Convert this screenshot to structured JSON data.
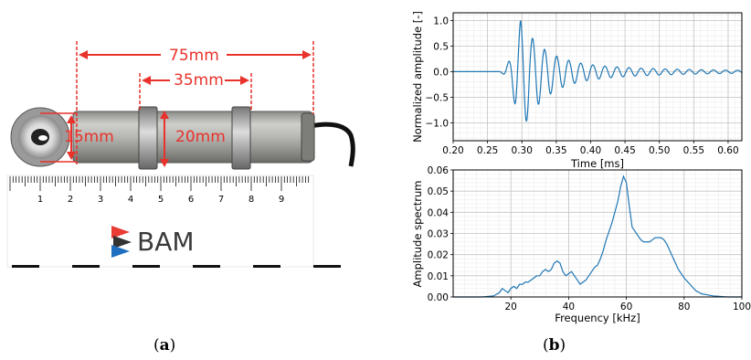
{
  "photo": {
    "dim_total": "75mm",
    "dim_middle": "35mm",
    "dim_diameter_outer": "15mm",
    "dim_diameter_inner": "20mm",
    "ruler_numbers": [
      "1",
      "2",
      "3",
      "4",
      "5",
      "6",
      "7",
      "8",
      "9"
    ],
    "logo_text": "BAM",
    "accent_red": "#e8322b",
    "logo_blue": "#1e6fc0",
    "logo_red": "#e83c34"
  },
  "captions": {
    "a_open": "(",
    "a_letter": "a",
    "a_close": ")",
    "b_open": "(",
    "b_letter": "b",
    "b_close": ")"
  },
  "chart_data": [
    {
      "type": "line",
      "xlabel": "Time [ms]",
      "ylabel": "Normalized amplitude [-]",
      "xlim": [
        0.2,
        0.62
      ],
      "ylim": [
        -1.35,
        1.15
      ],
      "xticks": [
        0.2,
        0.25,
        0.3,
        0.35,
        0.4,
        0.45,
        0.5,
        0.55,
        0.6
      ],
      "xtick_labels": [
        "0.20",
        "0.25",
        "0.30",
        "0.35",
        "0.40",
        "0.45",
        "0.50",
        "0.55",
        "0.60"
      ],
      "yticks": [
        -1.0,
        -0.5,
        0.0,
        0.5,
        1.0
      ],
      "ytick_labels": [
        "−1.0",
        "−0.5",
        "0.0",
        "0.5",
        "1.0"
      ],
      "grid": true,
      "color": "#1f77b4",
      "waveform": {
        "start": 0.265,
        "end": 0.62,
        "frequency_khz": 57,
        "peak_time": 0.298,
        "rise_time": 0.018,
        "decay_time": 0.075,
        "peak_amplitude": 1.0,
        "negative_peak": -1.2,
        "sample_step": 0.0004
      }
    },
    {
      "type": "line",
      "xlabel": "Frequency [kHz]",
      "ylabel": "Amplitude spectrum",
      "xlim": [
        0,
        100
      ],
      "ylim": [
        0,
        0.06
      ],
      "xticks": [
        20,
        40,
        60,
        80,
        100
      ],
      "xtick_labels": [
        "20",
        "40",
        "60",
        "80",
        "100"
      ],
      "yticks": [
        0.0,
        0.01,
        0.02,
        0.03,
        0.04,
        0.05,
        0.06
      ],
      "ytick_labels": [
        "0.00",
        "0.01",
        "0.02",
        "0.03",
        "0.04",
        "0.05",
        "0.06"
      ],
      "grid": true,
      "color": "#1f77b4",
      "x": [
        0,
        5,
        10,
        14,
        16,
        17,
        18,
        19,
        20,
        21,
        22,
        23,
        24,
        25,
        26,
        27,
        28,
        29,
        30,
        31,
        32,
        33,
        34,
        35,
        36,
        37,
        38,
        39,
        40,
        41,
        42,
        43,
        44,
        45,
        46,
        47,
        48,
        49,
        50,
        51,
        52,
        53,
        54,
        55,
        56,
        57,
        58,
        59,
        60,
        61,
        62,
        63,
        64,
        65,
        66,
        67,
        68,
        69,
        70,
        71,
        72,
        73,
        74,
        75,
        76,
        77,
        78,
        80,
        82,
        84,
        86,
        88,
        90,
        95,
        100
      ],
      "y": [
        0,
        0,
        0,
        0.0005,
        0.002,
        0.004,
        0.003,
        0.002,
        0.004,
        0.005,
        0.004,
        0.006,
        0.006,
        0.007,
        0.007,
        0.008,
        0.009,
        0.01,
        0.01,
        0.012,
        0.013,
        0.012,
        0.013,
        0.016,
        0.017,
        0.016,
        0.012,
        0.01,
        0.011,
        0.012,
        0.01,
        0.008,
        0.006,
        0.007,
        0.008,
        0.01,
        0.012,
        0.014,
        0.015,
        0.018,
        0.022,
        0.027,
        0.031,
        0.035,
        0.04,
        0.045,
        0.052,
        0.057,
        0.054,
        0.043,
        0.033,
        0.031,
        0.029,
        0.027,
        0.026,
        0.026,
        0.026,
        0.027,
        0.028,
        0.028,
        0.028,
        0.027,
        0.025,
        0.022,
        0.019,
        0.016,
        0.013,
        0.009,
        0.006,
        0.003,
        0.0015,
        0.001,
        0.0005,
        0,
        0
      ]
    }
  ]
}
